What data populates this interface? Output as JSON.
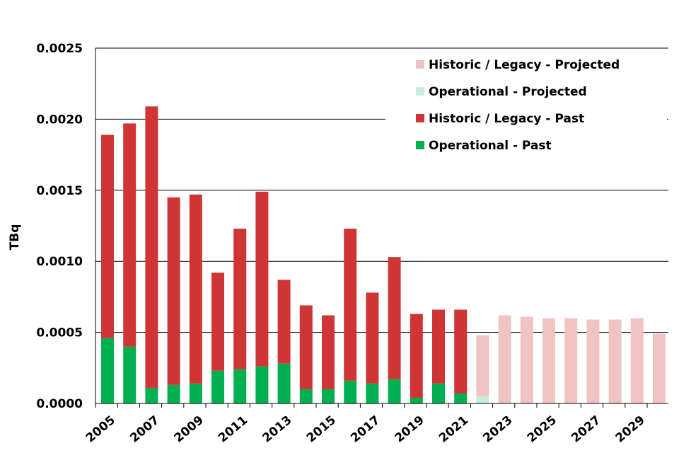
{
  "chart_data": {
    "type": "bar",
    "stacked": true,
    "title": "",
    "xlabel": "",
    "ylabel": "TBq",
    "ylim": [
      0,
      0.0025
    ],
    "yticks": [
      "0.0000",
      "0.0005",
      "0.0010",
      "0.0015",
      "0.0020",
      "0.0025"
    ],
    "ytick_values": [
      0,
      0.0005,
      0.001,
      0.0015,
      0.002,
      0.0025
    ],
    "categories": [
      "2005",
      "2006",
      "2007",
      "2008",
      "2009",
      "2010",
      "2011",
      "2012",
      "2013",
      "2014",
      "2015",
      "2016",
      "2017",
      "2018",
      "2019",
      "2020",
      "2021",
      "2022",
      "2023",
      "2024",
      "2025",
      "2026",
      "2027",
      "2028",
      "2029",
      "2030"
    ],
    "xtick_labels": [
      "2005",
      "2007",
      "2009",
      "2011",
      "2013",
      "2015",
      "2017",
      "2019",
      "2021",
      "2023",
      "2025",
      "2027",
      "2029"
    ],
    "series": [
      {
        "name": "Operational - Past",
        "color": "#00b050",
        "values": [
          0.00046,
          0.0004,
          0.00011,
          0.00013,
          0.00014,
          0.00023,
          0.00024,
          0.00026,
          0.00028,
          0.0001,
          0.0001,
          0.00016,
          0.00014,
          0.00017,
          4e-05,
          0.00014,
          7e-05,
          0,
          0,
          0,
          0,
          0,
          0,
          0,
          0,
          0
        ]
      },
      {
        "name": "Historic / Legacy - Past",
        "color": "#d03535",
        "values": [
          0.00143,
          0.00157,
          0.00198,
          0.00132,
          0.00133,
          0.00069,
          0.00099,
          0.00123,
          0.00059,
          0.00059,
          0.00052,
          0.00107,
          0.00064,
          0.00086,
          0.00059,
          0.00052,
          0.00059,
          0,
          0,
          0,
          0,
          0,
          0,
          0,
          0,
          0
        ]
      },
      {
        "name": "Operational - Projected",
        "color": "#c6efd9",
        "values": [
          0,
          0,
          0,
          0,
          0,
          0,
          0,
          0,
          0,
          0,
          0,
          0,
          0,
          0,
          0,
          0,
          0,
          5e-05,
          0,
          0,
          0,
          0,
          0,
          0,
          0,
          0
        ]
      },
      {
        "name": "Historic / Legacy - Projected",
        "color": "#f0c4c4",
        "values": [
          0,
          0,
          0,
          0,
          0,
          0,
          0,
          0,
          0,
          0,
          0,
          0,
          0,
          0,
          0,
          0,
          0,
          0.00043,
          0.00062,
          0.00061,
          0.0006,
          0.0006,
          0.00059,
          0.00059,
          0.0006,
          0.00049
        ]
      }
    ],
    "legend": {
      "placement": "top-right",
      "order": [
        "Historic / Legacy - Projected",
        "Operational - Projected",
        "Historic / Legacy - Past",
        "Operational - Past"
      ]
    },
    "grid": true
  }
}
